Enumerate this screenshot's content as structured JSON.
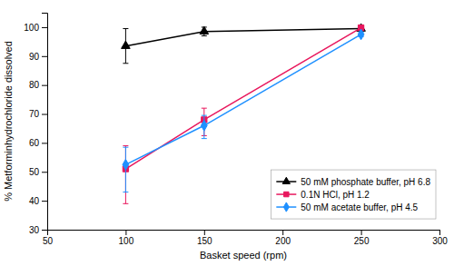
{
  "chart_data": {
    "type": "line",
    "x": [
      100,
      150,
      250
    ],
    "series": [
      {
        "name": "50 mM phosphate buffer, pH 6.8",
        "color": "#000000",
        "marker": "triangle",
        "values": [
          93.5,
          98.5,
          99.5
        ],
        "yerr_lo": [
          6.0,
          1.5,
          0.8
        ],
        "yerr_hi": [
          6.0,
          1.5,
          0.8
        ]
      },
      {
        "name": "0.1N HCl, pH 1.2",
        "color": "#e8175d",
        "marker": "square",
        "values": [
          51.0,
          68.0,
          99.8
        ],
        "yerr_lo": [
          12.0,
          5.5,
          0.5
        ],
        "yerr_hi": [
          8.0,
          4.0,
          0.5
        ]
      },
      {
        "name": "50 mM acetate buffer, pH 4.5",
        "color": "#1e90ff",
        "marker": "diamond",
        "values": [
          52.5,
          66.0,
          97.5
        ],
        "yerr_lo": [
          9.5,
          4.5,
          0.8
        ],
        "yerr_hi": [
          6.0,
          3.5,
          0.8
        ]
      }
    ],
    "xlabel": "Basket speed (rpm)",
    "ylabel": "% Metforminhydrochloride dissolved",
    "xlim": [
      50,
      300
    ],
    "ylim": [
      30,
      105
    ],
    "xticks": [
      50,
      100,
      150,
      200,
      250,
      300
    ],
    "yticks": [
      30,
      40,
      50,
      60,
      70,
      80,
      90,
      100
    ],
    "grid": false,
    "legend": "lower right"
  }
}
